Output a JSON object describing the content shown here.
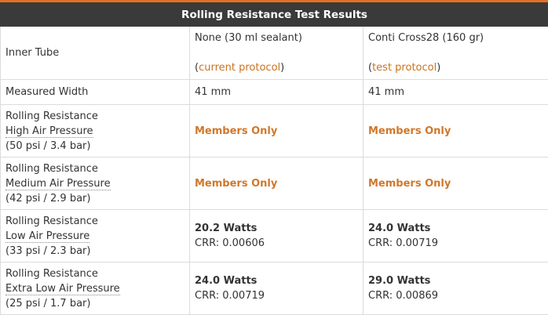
{
  "table": {
    "title": "Rolling Resistance Test Results",
    "inner_tube": {
      "label": "Inner Tube",
      "col1_name": "None (30 ml sealant)",
      "col1_link": "current protocol",
      "col2_name": "Conti Cross28 (160 gr)",
      "col2_link": "test protocol",
      "paren_open": "(",
      "paren_close": ")"
    },
    "rows": [
      {
        "label": "Measured Width",
        "col1": "41 mm",
        "col2": "41 mm"
      },
      {
        "label_line1": "Rolling Resistance",
        "label_line2": "High Air Pressure",
        "label_line3": "(50 psi / 3.4 bar)",
        "col1": "Members Only",
        "col2": "Members Only"
      },
      {
        "label_line1": "Rolling Resistance",
        "label_line2": "Medium Air Pressure",
        "label_line3": "(42 psi / 2.9 bar)",
        "col1": "Members Only",
        "col2": "Members Only"
      },
      {
        "label_line1": "Rolling Resistance",
        "label_line2": "Low Air Pressure",
        "label_line3": "(33 psi / 2.3 bar)",
        "col1_watts": "20.2 Watts",
        "col1_crr": "CRR: 0.00606",
        "col2_watts": "24.0 Watts",
        "col2_crr": "CRR: 0.00719"
      },
      {
        "label_line1": "Rolling Resistance",
        "label_line2": "Extra Low Air Pressure",
        "label_line3": "(25 psi / 1.7 bar)",
        "col1_watts": "24.0 Watts",
        "col1_crr": "CRR: 0.00719",
        "col2_watts": "29.0 Watts",
        "col2_crr": "CRR: 0.00869"
      }
    ]
  },
  "colors": {
    "accent": "#e46f21",
    "header_bg": "#3a3a3a",
    "link": "#c8721f"
  }
}
